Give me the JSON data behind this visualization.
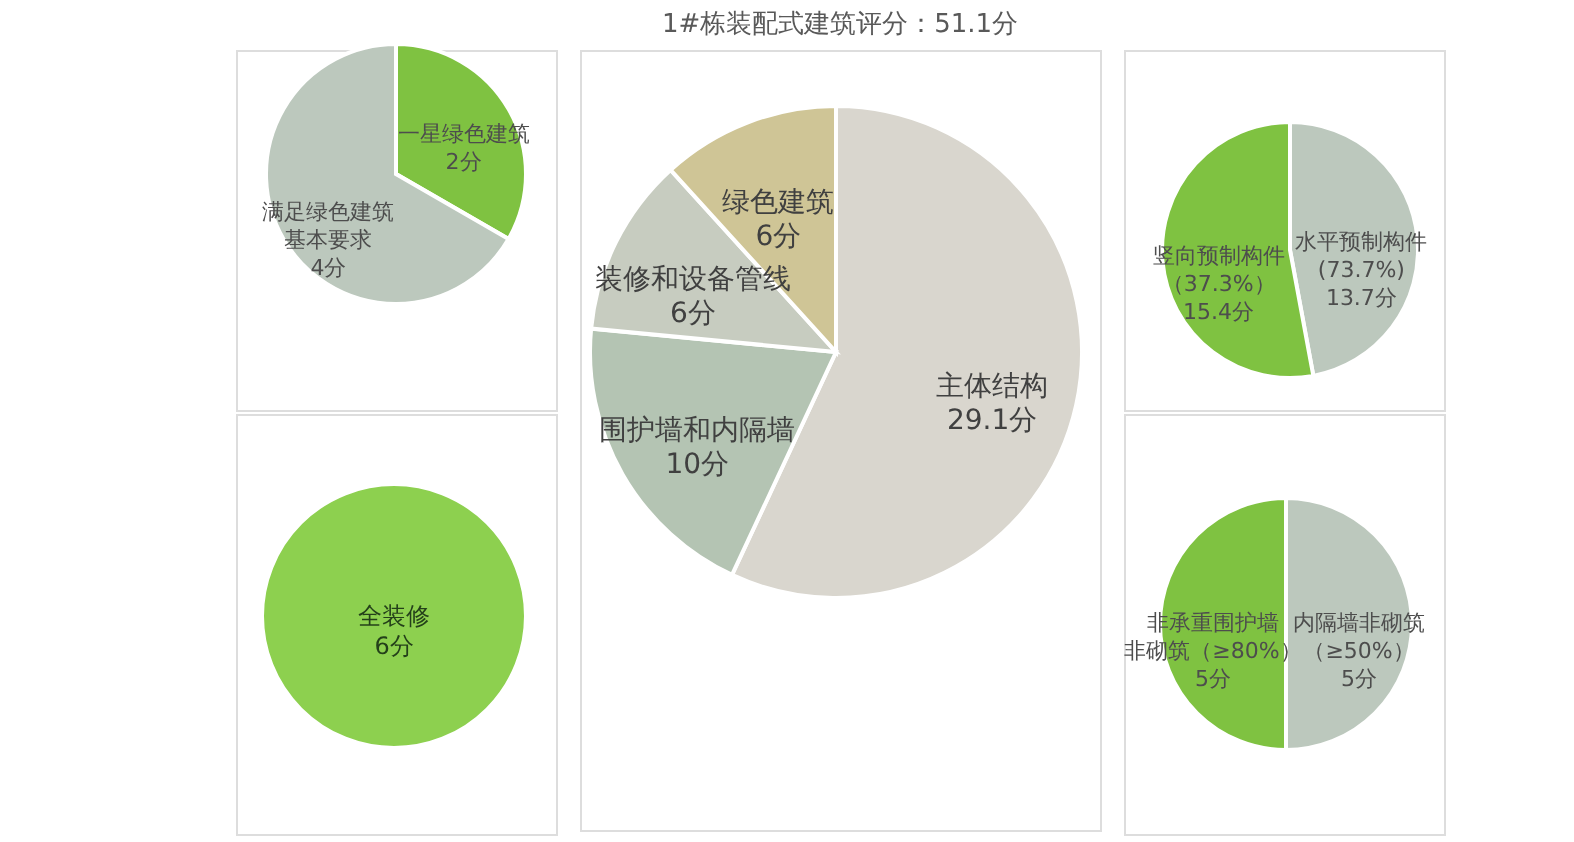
{
  "chart_data": [
    {
      "type": "pie",
      "title": "1#栋装配式建筑评分：51.1分",
      "categories": [
        "主体结构",
        "围护墙和内隔墙",
        "装修和设备管线",
        "绿色建筑"
      ],
      "values": [
        29.1,
        10,
        6,
        6
      ],
      "value_labels": [
        "29.1分",
        "10分",
        "6分",
        "6分"
      ],
      "colors": [
        "#d9d6ce",
        "#b4c4b3",
        "#c7ccc0",
        "#cfc596"
      ]
    },
    {
      "type": "pie",
      "categories": [
        "一星绿色建筑",
        "满足绿色建筑基本要求"
      ],
      "values": [
        2,
        4
      ],
      "value_labels": [
        "2分",
        "4分"
      ],
      "colors": [
        "#7fc241",
        "#bcc8bd"
      ]
    },
    {
      "type": "pie",
      "categories": [
        "水平预制构件(73.7%)",
        "竖向预制构件（37.3%）"
      ],
      "values": [
        13.7,
        15.4
      ],
      "value_labels": [
        "13.7分",
        "15.4分"
      ],
      "colors": [
        "#bcc8bd",
        "#7fc241"
      ]
    },
    {
      "type": "pie",
      "categories": [
        "全装修"
      ],
      "values": [
        6
      ],
      "value_labels": [
        "6分"
      ],
      "colors": [
        "#8dd04f"
      ]
    },
    {
      "type": "pie",
      "categories": [
        "内隔墙非砌筑（≥50%）",
        "非承重围护墙非砌筑（≥80%）"
      ],
      "values": [
        5,
        5
      ],
      "value_labels": [
        "5分",
        "5分"
      ],
      "colors": [
        "#bcc8bd",
        "#7fc241"
      ]
    }
  ]
}
